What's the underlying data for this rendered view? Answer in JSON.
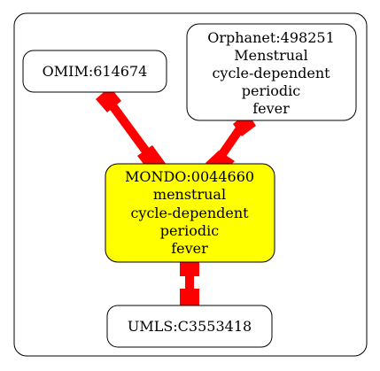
{
  "colors": {
    "edge": "#ff0000",
    "central_fill": "#ffff00",
    "node_fill": "#ffffff",
    "stroke": "#000000"
  },
  "nodes": {
    "omim": {
      "lines": [
        "OMIM:614674"
      ]
    },
    "orphanet": {
      "lines": [
        "Orphanet:498251",
        "Menstrual",
        "cycle-dependent",
        "periodic",
        "fever"
      ]
    },
    "mondo": {
      "lines": [
        "MONDO:0044660",
        "menstrual",
        "cycle-dependent",
        "periodic",
        "fever"
      ]
    },
    "umls": {
      "lines": [
        "UMLS:C3553418"
      ]
    }
  }
}
